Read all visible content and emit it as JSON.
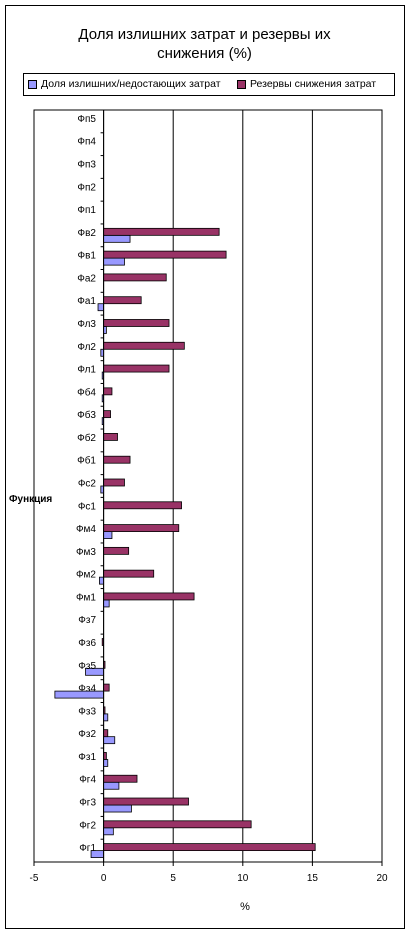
{
  "chart_data": {
    "type": "bar",
    "orientation": "horizontal",
    "title_lines": [
      "Доля излишних затрат и резервы их",
      "снижения (%)"
    ],
    "ylabel": "Функция",
    "xlabel": "%",
    "xlim": [
      -5,
      20
    ],
    "x_ticks": [
      "-5",
      "0",
      "5",
      "10",
      "15",
      "20"
    ],
    "grid": true,
    "legend_position": "top",
    "categories": [
      "Фп5",
      "Фп4",
      "Фп3",
      "Фп2",
      "Фп1",
      "Фв2",
      "Фв1",
      "Фа2",
      "Фа1",
      "Фл3",
      "Фл2",
      "Фл1",
      "Фб4",
      "Фб3",
      "Фб2",
      "Фб1",
      "Фс2",
      "Фс1",
      "Фм4",
      "Фм3",
      "Фм2",
      "Фм1",
      "Фз7",
      "Фз6",
      "Фз5",
      "Фз4",
      "Фз3",
      "Фз2",
      "Фз1",
      "Фг4",
      "Фг3",
      "Фг2",
      "Фг1"
    ],
    "series": [
      {
        "name": "Доля излишних/недостающих затрат",
        "color": "#9999ff",
        "values": [
          0,
          0,
          0,
          0,
          0,
          1.9,
          1.5,
          0,
          -0.4,
          0.2,
          -0.2,
          -0.1,
          -0.1,
          -0.1,
          0,
          0,
          -0.2,
          0,
          0.6,
          0,
          -0.3,
          0.4,
          0,
          0,
          -1.3,
          -3.5,
          0.3,
          0.8,
          0.3,
          1.1,
          2.0,
          0.7,
          -0.9
        ]
      },
      {
        "name": "Резервы снижения затрат",
        "color": "#993366",
        "values": [
          0,
          0,
          0,
          0,
          0,
          8.3,
          8.8,
          4.5,
          2.7,
          4.7,
          5.8,
          4.7,
          0.6,
          0.5,
          1.0,
          1.9,
          1.5,
          5.6,
          5.4,
          1.8,
          3.6,
          6.5,
          0,
          -0.1,
          0.1,
          0.4,
          0.1,
          0.3,
          0.2,
          2.4,
          6.1,
          10.6,
          15.2
        ]
      }
    ]
  }
}
